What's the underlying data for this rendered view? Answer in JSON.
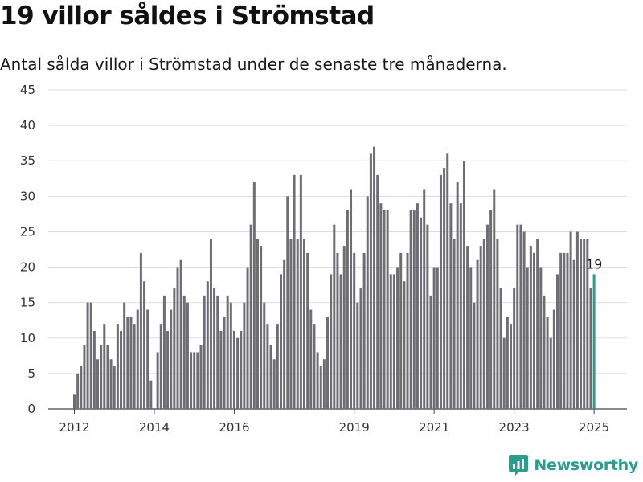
{
  "title": "19 villor såldes i Strömstad",
  "subtitle": "Antal sålda villor i Strömstad under de senaste tre månaderna.",
  "brand": {
    "name": "Newsworthy",
    "icon": "newsworthy-logo-icon",
    "color": "#2a9d8f"
  },
  "chart_data": {
    "type": "bar",
    "start_month": "2012-01",
    "frequency": "monthly",
    "values": [
      2,
      5,
      6,
      9,
      15,
      15,
      11,
      7,
      9,
      12,
      9,
      7,
      6,
      12,
      11,
      15,
      13,
      13,
      12,
      14,
      22,
      18,
      14,
      4,
      0,
      8,
      12,
      16,
      11,
      14,
      17,
      20,
      21,
      16,
      15,
      8,
      8,
      8,
      9,
      16,
      18,
      24,
      17,
      16,
      11,
      13,
      16,
      15,
      11,
      10,
      11,
      15,
      20,
      26,
      32,
      24,
      23,
      15,
      12,
      9,
      7,
      12,
      19,
      21,
      30,
      24,
      33,
      24,
      33,
      24,
      22,
      14,
      12,
      8,
      6,
      7,
      13,
      19,
      26,
      22,
      19,
      23,
      28,
      31,
      22,
      15,
      17,
      22,
      30,
      36,
      37,
      33,
      29,
      28,
      28,
      19,
      19,
      20,
      22,
      18,
      22,
      28,
      28,
      29,
      27,
      31,
      26,
      16,
      20,
      20,
      33,
      34,
      36,
      29,
      24,
      32,
      29,
      35,
      23,
      20,
      15,
      21,
      23,
      24,
      26,
      28,
      31,
      24,
      17,
      10,
      13,
      12,
      17,
      26,
      26,
      25,
      20,
      23,
      22,
      24,
      20,
      16,
      13,
      10,
      14,
      19,
      22,
      22,
      22,
      25,
      21,
      25,
      24,
      24,
      24,
      17,
      19
    ],
    "bar_color": "#6e6d73",
    "highlight_color": "#2a9d8f",
    "highlight_last": true,
    "last_value_label": "19",
    "ylim": [
      0,
      45
    ],
    "yticks": [
      0,
      5,
      10,
      15,
      20,
      25,
      30,
      35,
      40,
      45
    ],
    "xticks": [
      "2012",
      "2014",
      "2016",
      "2019",
      "2021",
      "2023",
      "2025"
    ],
    "grid": true
  }
}
